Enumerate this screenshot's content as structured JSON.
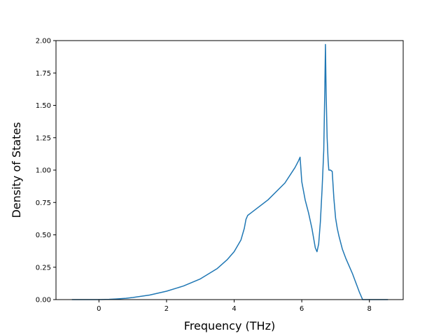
{
  "chart_data": {
    "type": "line",
    "title": "",
    "xlabel": "Frequency (THz)",
    "ylabel": "Density of States",
    "xlim": [
      -1.27,
      9.0
    ],
    "ylim": [
      0.0,
      2.0
    ],
    "x_ticks": [
      0,
      2,
      4,
      6,
      8
    ],
    "x_tick_labels": [
      "0",
      "2",
      "4",
      "6",
      "8"
    ],
    "y_ticks": [
      0.0,
      0.25,
      0.5,
      0.75,
      1.0,
      1.25,
      1.5,
      1.75,
      2.0
    ],
    "y_tick_labels": [
      "0.00",
      "0.25",
      "0.50",
      "0.75",
      "1.00",
      "1.25",
      "1.50",
      "1.75",
      "2.00"
    ],
    "grid": false,
    "legend": "none",
    "line_color": "#1f77b4",
    "series": [
      {
        "x": [
          -0.8,
          -0.5,
          -0.2,
          0.0,
          0.3,
          0.5,
          0.8,
          1.0,
          1.5,
          2.0,
          2.5,
          3.0,
          3.5,
          3.8,
          4.0,
          4.2,
          4.3,
          4.35,
          4.4,
          4.5,
          5.0,
          5.5,
          5.8,
          5.9,
          5.95,
          6.0,
          6.1,
          6.2,
          6.3,
          6.4,
          6.45,
          6.5,
          6.55,
          6.6,
          6.65,
          6.68,
          6.7,
          6.72,
          6.75,
          6.78,
          6.8,
          6.82,
          6.85,
          6.9,
          6.95,
          7.0,
          7.05,
          7.1,
          7.2,
          7.3,
          7.5,
          7.7,
          7.8,
          8.0,
          8.3,
          8.55
        ],
        "y": [
          0.0,
          0.0,
          0.0,
          0.0,
          0.002,
          0.005,
          0.01,
          0.016,
          0.035,
          0.065,
          0.105,
          0.16,
          0.24,
          0.31,
          0.37,
          0.46,
          0.55,
          0.62,
          0.65,
          0.67,
          0.77,
          0.9,
          1.02,
          1.07,
          1.1,
          0.91,
          0.77,
          0.67,
          0.55,
          0.4,
          0.37,
          0.43,
          0.6,
          0.85,
          1.15,
          1.6,
          1.97,
          1.6,
          1.25,
          1.07,
          1.0,
          1.0,
          1.0,
          0.99,
          0.78,
          0.63,
          0.55,
          0.49,
          0.39,
          0.32,
          0.2,
          0.06,
          0.0,
          0.0,
          0.0,
          0.0
        ]
      }
    ]
  }
}
